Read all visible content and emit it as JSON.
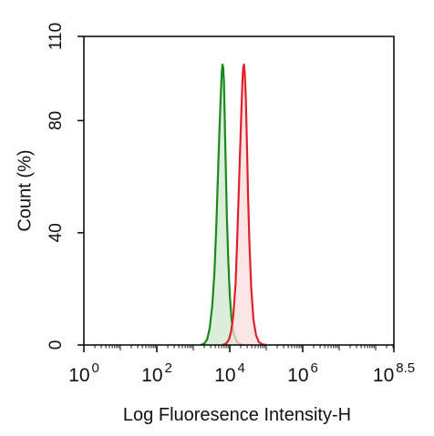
{
  "chart_data": {
    "type": "area",
    "title": "",
    "xlabel": "Log Fluoresence Intensity-H",
    "ylabel": "Count  (%)",
    "x_scale": "log10",
    "xlim": [
      0,
      8.5
    ],
    "ylim": [
      0,
      110
    ],
    "x_ticks": [
      {
        "exp": 0,
        "base": "10",
        "sup": "0"
      },
      {
        "exp": 2,
        "base": "10",
        "sup": "2"
      },
      {
        "exp": 4,
        "base": "10",
        "sup": "4"
      },
      {
        "exp": 6,
        "base": "10",
        "sup": "6"
      },
      {
        "exp": 8.5,
        "base": "10",
        "sup": "8.5"
      }
    ],
    "y_ticks": [
      0,
      40,
      80,
      110
    ],
    "grid": false,
    "series": [
      {
        "color": "#1a8a1a",
        "fill": "#cfe8cf",
        "points": [
          [
            3.2,
            0
          ],
          [
            3.3,
            0.5
          ],
          [
            3.38,
            2
          ],
          [
            3.45,
            6
          ],
          [
            3.52,
            14
          ],
          [
            3.58,
            26
          ],
          [
            3.63,
            42
          ],
          [
            3.67,
            58
          ],
          [
            3.71,
            74
          ],
          [
            3.75,
            88
          ],
          [
            3.78,
            97
          ],
          [
            3.8,
            100
          ],
          [
            3.82,
            99
          ],
          [
            3.84,
            94
          ],
          [
            3.86,
            82
          ],
          [
            3.89,
            64
          ],
          [
            3.92,
            46
          ],
          [
            3.96,
            30
          ],
          [
            4.0,
            18
          ],
          [
            4.05,
            9
          ],
          [
            4.12,
            3.5
          ],
          [
            4.2,
            1
          ],
          [
            4.3,
            0.2
          ],
          [
            4.4,
            0
          ]
        ]
      },
      {
        "color": "#e0202a",
        "fill": "#fbdcdc",
        "points": [
          [
            3.8,
            0
          ],
          [
            3.9,
            0.5
          ],
          [
            3.98,
            2
          ],
          [
            4.04,
            5
          ],
          [
            4.1,
            11
          ],
          [
            4.16,
            22
          ],
          [
            4.2,
            36
          ],
          [
            4.24,
            52
          ],
          [
            4.28,
            68
          ],
          [
            4.32,
            84
          ],
          [
            4.35,
            95
          ],
          [
            4.37,
            99
          ],
          [
            4.39,
            100
          ],
          [
            4.41,
            97
          ],
          [
            4.44,
            88
          ],
          [
            4.47,
            72
          ],
          [
            4.5,
            54
          ],
          [
            4.54,
            36
          ],
          [
            4.59,
            20
          ],
          [
            4.65,
            9
          ],
          [
            4.72,
            3.5
          ],
          [
            4.8,
            1
          ],
          [
            4.9,
            0.2
          ],
          [
            5.0,
            0
          ]
        ]
      }
    ]
  }
}
